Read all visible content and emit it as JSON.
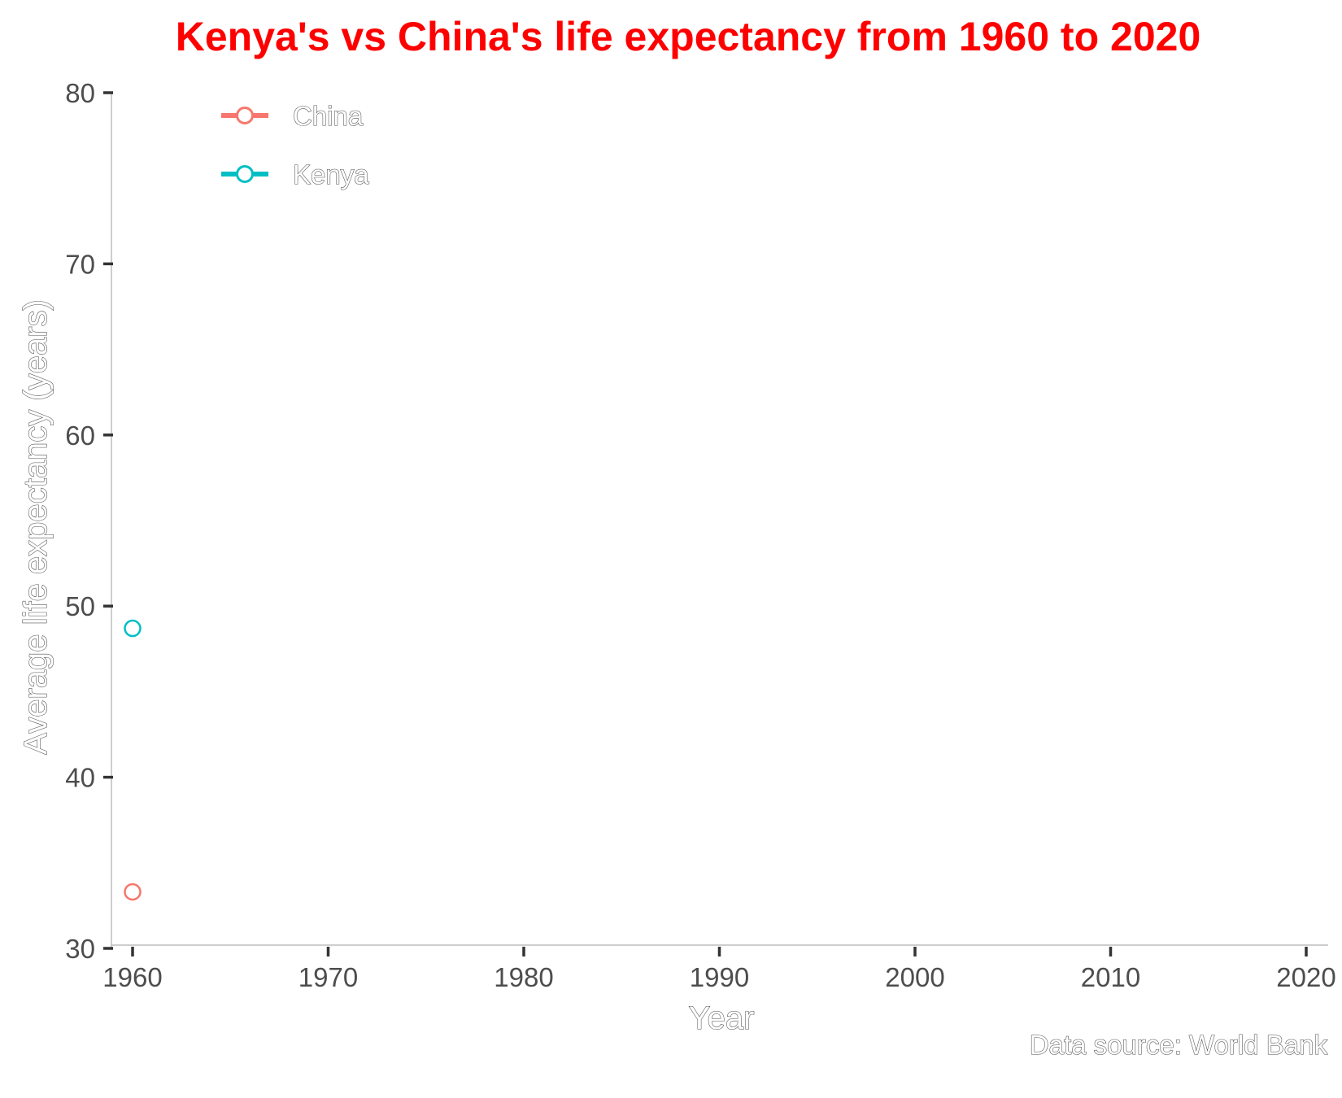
{
  "colors": {
    "title": "#ff0000",
    "China": "#f8766d",
    "Kenya": "#00bfc4",
    "axis": "#333333",
    "axis_line": "#bdbdbd",
    "text": "#4d4d4d"
  },
  "caption": "Data source: World Bank",
  "chart_data": {
    "type": "line",
    "title": "Kenya's vs China's life expectancy from 1960 to 2020",
    "xlabel": "Year",
    "ylabel": "Average life expectancy (years)",
    "xlim": [
      1960,
      2020
    ],
    "ylim": [
      30,
      80
    ],
    "xticks": [
      1960,
      1970,
      1980,
      1990,
      2000,
      2010,
      2020
    ],
    "yticks": [
      30,
      40,
      50,
      60,
      70,
      80
    ],
    "grid": false,
    "legend": "top-left",
    "series": [
      {
        "name": "China",
        "marker": "open-circle",
        "points": [
          {
            "x": 1960,
            "y": 33.3
          }
        ]
      },
      {
        "name": "Kenya",
        "marker": "open-circle",
        "points": [
          {
            "x": 1960,
            "y": 48.7
          }
        ]
      }
    ]
  }
}
